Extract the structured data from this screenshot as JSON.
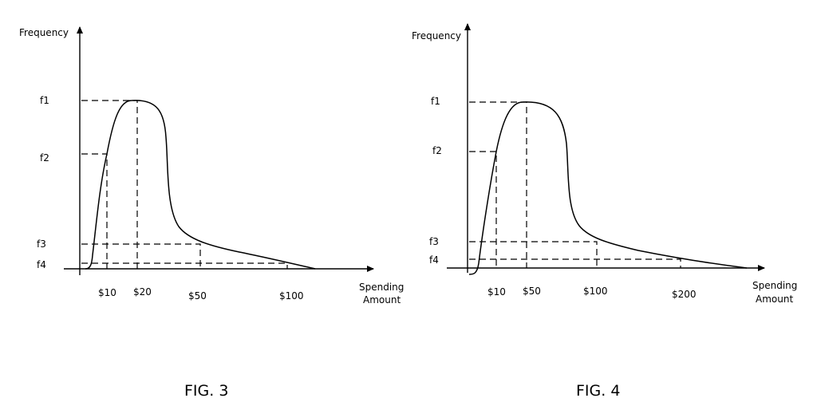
{
  "chart_data": [
    {
      "type": "line",
      "figure_label": "FIG. 3",
      "ylabel": "Frequency",
      "xlabel": [
        "Spending",
        "Amount"
      ],
      "x_tick_labels": [
        "$10",
        "$20",
        "$50",
        "$100"
      ],
      "y_tick_labels": [
        "f1",
        "f2",
        "f3",
        "f4"
      ],
      "points": [
        {
          "x": "$10",
          "y": "f2"
        },
        {
          "x": "$20",
          "y": "f1"
        },
        {
          "x": "$50",
          "y": "f3"
        },
        {
          "x": "$100",
          "y": "f4"
        }
      ]
    },
    {
      "type": "line",
      "figure_label": "FIG. 4",
      "ylabel": "Frequency",
      "xlabel": [
        "Spending",
        "Amount"
      ],
      "x_tick_labels": [
        "$10",
        "$50",
        "$100",
        "$200"
      ],
      "y_tick_labels": [
        "f1",
        "f2",
        "f3",
        "f4"
      ],
      "points": [
        {
          "x": "$10",
          "y": "f2"
        },
        {
          "x": "$50",
          "y": "f1"
        },
        {
          "x": "$100",
          "y": "f3"
        },
        {
          "x": "$200",
          "y": "f4"
        }
      ]
    }
  ]
}
